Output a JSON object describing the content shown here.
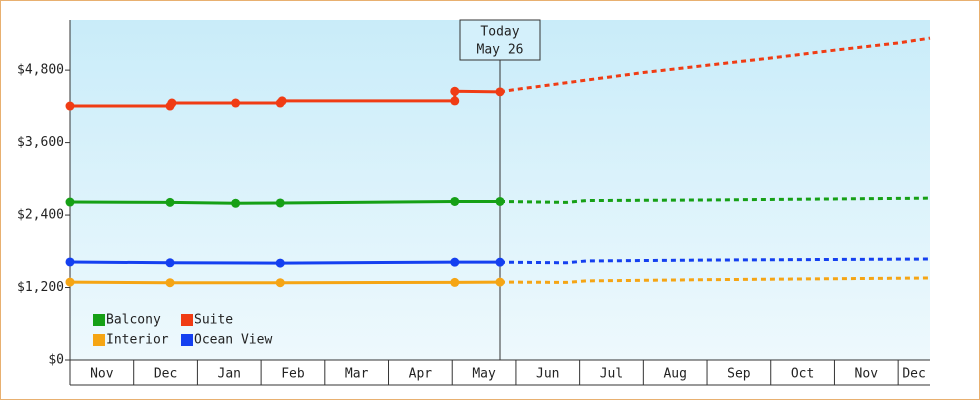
{
  "chart_data": {
    "type": "line",
    "categories": [
      "Nov",
      "Dec",
      "Jan",
      "Feb",
      "Mar",
      "Apr",
      "May",
      "Jun",
      "Jul",
      "Aug",
      "Sep",
      "Oct",
      "Nov",
      "Dec"
    ],
    "xlim": [
      0,
      13.5
    ],
    "ylim": [
      0,
      5630
    ],
    "yticks": [
      {
        "value": 0,
        "label": "$0"
      },
      {
        "value": 1200,
        "label": "$1,200"
      },
      {
        "value": 2400,
        "label": "$2,400"
      },
      {
        "value": 3600,
        "label": "$3,600"
      },
      {
        "value": 4800,
        "label": "$4,800"
      }
    ],
    "today": {
      "x": 6.75,
      "label": [
        "Today",
        "May 26"
      ]
    },
    "series": [
      {
        "name": "Balcony",
        "color": "#16a016",
        "x": [
          0,
          1.57,
          2.6,
          3.3,
          6.04,
          6.75
        ],
        "values": [
          2616,
          2610,
          2595,
          2600,
          2625,
          2625
        ],
        "forecast_x": [
          6.75,
          7.8,
          8.1,
          10,
          13.5
        ],
        "forecast_values": [
          2625,
          2610,
          2640,
          2650,
          2680
        ]
      },
      {
        "name": "Suite",
        "color": "#f03c14",
        "x": [
          0,
          1.57,
          1.6,
          2.6,
          3.3,
          3.33,
          6.04,
          6.04,
          6.75
        ],
        "values": [
          4205,
          4205,
          4255,
          4255,
          4255,
          4290,
          4290,
          4450,
          4440
        ],
        "forecast_x": [
          6.75,
          7,
          8,
          9,
          10,
          11,
          12,
          13,
          13.5
        ],
        "forecast_values": [
          4440,
          4480,
          4620,
          4760,
          4880,
          5000,
          5130,
          5250,
          5330
        ]
      },
      {
        "name": "Interior",
        "color": "#f5a514",
        "x": [
          0,
          1.57,
          3.3,
          6.04,
          6.75
        ],
        "values": [
          1290,
          1280,
          1280,
          1285,
          1290
        ],
        "forecast_x": [
          6.75,
          7.8,
          8.1,
          10,
          13.5
        ],
        "forecast_values": [
          1290,
          1285,
          1310,
          1330,
          1358
        ]
      },
      {
        "name": "Ocean View",
        "color": "#1440f0",
        "x": [
          0,
          1.57,
          3.3,
          6.04,
          6.75
        ],
        "values": [
          1623,
          1610,
          1605,
          1620,
          1620
        ],
        "forecast_x": [
          6.75,
          7.8,
          8.1,
          10,
          13.5
        ],
        "forecast_values": [
          1620,
          1610,
          1640,
          1655,
          1672
        ]
      }
    ]
  }
}
